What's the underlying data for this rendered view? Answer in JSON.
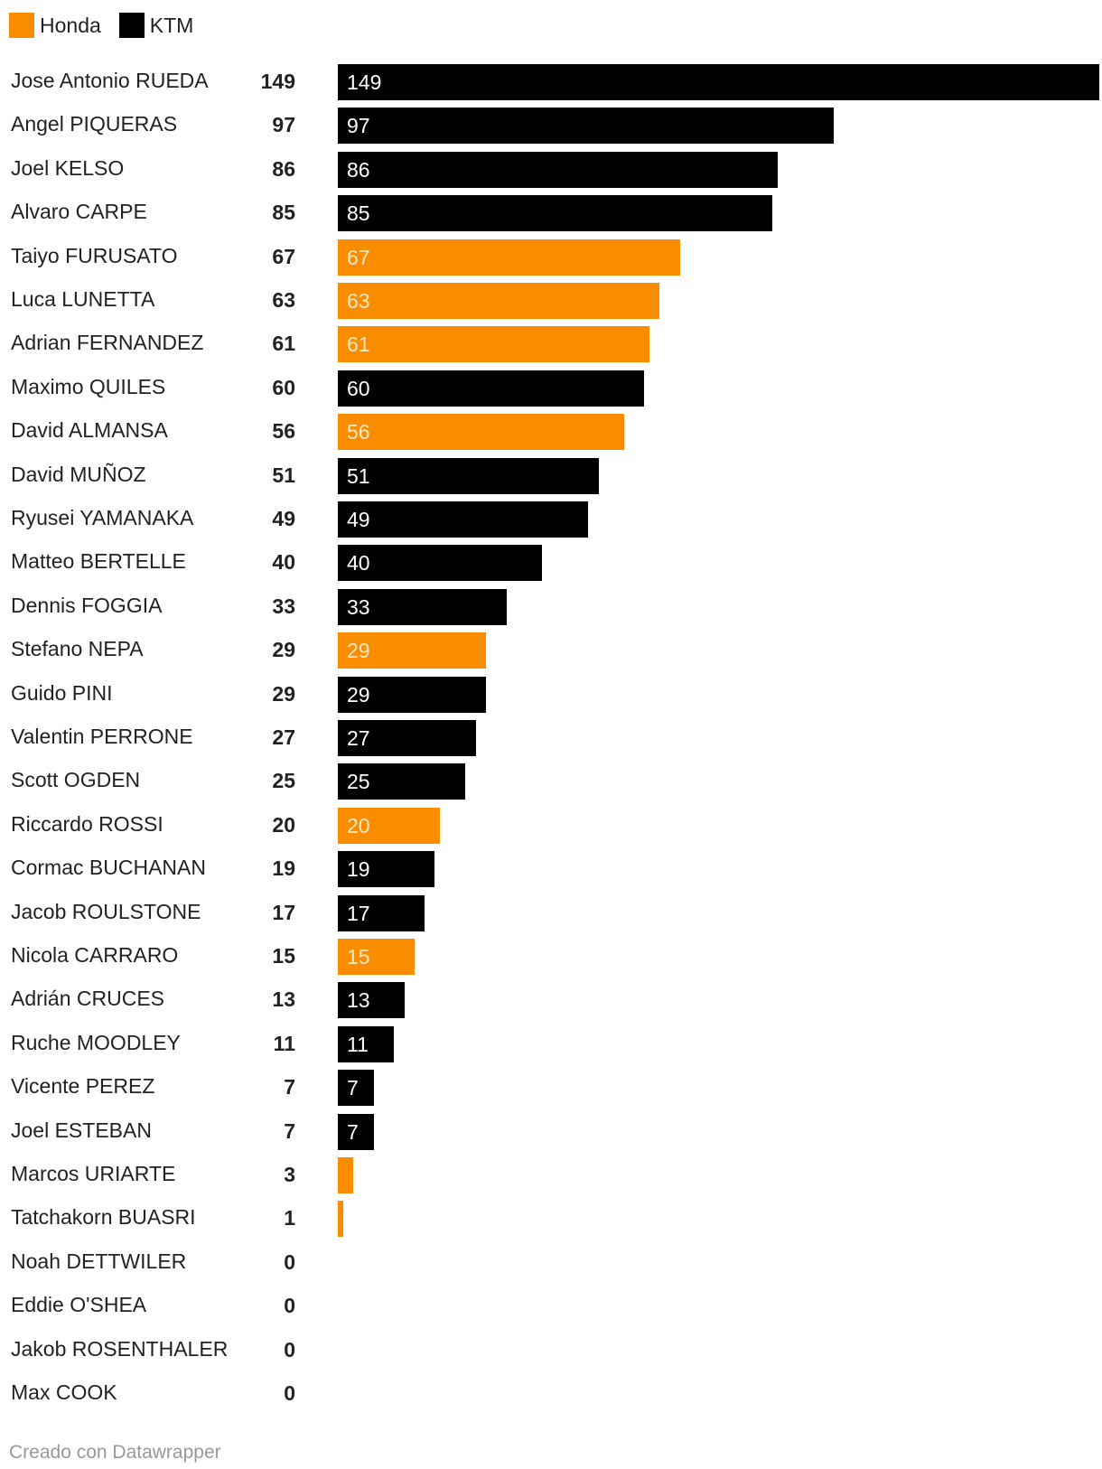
{
  "legend": [
    {
      "name": "Honda",
      "color": "#fa8c00"
    },
    {
      "name": "KTM",
      "color": "#000000"
    }
  ],
  "footer": "Creado con Datawrapper",
  "chart_data": {
    "type": "bar",
    "orientation": "horizontal",
    "max_value": 149,
    "series_colors": {
      "Honda": "#fa8c00",
      "KTM": "#000000"
    },
    "rows": [
      {
        "name": "Jose Antonio RUEDA",
        "value": 149,
        "team": "KTM",
        "show_label": true
      },
      {
        "name": "Angel PIQUERAS",
        "value": 97,
        "team": "KTM",
        "show_label": true
      },
      {
        "name": "Joel KELSO",
        "value": 86,
        "team": "KTM",
        "show_label": true
      },
      {
        "name": "Alvaro CARPE",
        "value": 85,
        "team": "KTM",
        "show_label": true
      },
      {
        "name": "Taiyo FURUSATO",
        "value": 67,
        "team": "Honda",
        "show_label": true
      },
      {
        "name": "Luca LUNETTA",
        "value": 63,
        "team": "Honda",
        "show_label": true
      },
      {
        "name": "Adrian FERNANDEZ",
        "value": 61,
        "team": "Honda",
        "show_label": true
      },
      {
        "name": "Maximo QUILES",
        "value": 60,
        "team": "KTM",
        "show_label": true
      },
      {
        "name": "David ALMANSA",
        "value": 56,
        "team": "Honda",
        "show_label": true
      },
      {
        "name": "David MUÑOZ",
        "value": 51,
        "team": "KTM",
        "show_label": true
      },
      {
        "name": "Ryusei YAMANAKA",
        "value": 49,
        "team": "KTM",
        "show_label": true
      },
      {
        "name": "Matteo BERTELLE",
        "value": 40,
        "team": "KTM",
        "show_label": true
      },
      {
        "name": "Dennis FOGGIA",
        "value": 33,
        "team": "KTM",
        "show_label": true
      },
      {
        "name": "Stefano NEPA",
        "value": 29,
        "team": "Honda",
        "show_label": true
      },
      {
        "name": "Guido PINI",
        "value": 29,
        "team": "KTM",
        "show_label": true
      },
      {
        "name": "Valentin PERRONE",
        "value": 27,
        "team": "KTM",
        "show_label": true
      },
      {
        "name": "Scott OGDEN",
        "value": 25,
        "team": "KTM",
        "show_label": true
      },
      {
        "name": "Riccardo ROSSI",
        "value": 20,
        "team": "Honda",
        "show_label": true
      },
      {
        "name": "Cormac BUCHANAN",
        "value": 19,
        "team": "KTM",
        "show_label": true
      },
      {
        "name": "Jacob ROULSTONE",
        "value": 17,
        "team": "KTM",
        "show_label": true
      },
      {
        "name": "Nicola CARRARO",
        "value": 15,
        "team": "Honda",
        "show_label": true
      },
      {
        "name": "Adrián CRUCES",
        "value": 13,
        "team": "KTM",
        "show_label": true
      },
      {
        "name": "Ruche MOODLEY",
        "value": 11,
        "team": "KTM",
        "show_label": true
      },
      {
        "name": "Vicente PEREZ",
        "value": 7,
        "team": "KTM",
        "show_label": true
      },
      {
        "name": "Joel ESTEBAN",
        "value": 7,
        "team": "KTM",
        "show_label": true
      },
      {
        "name": "Marcos URIARTE",
        "value": 3,
        "team": "Honda",
        "show_label": false
      },
      {
        "name": "Tatchakorn BUASRI",
        "value": 1,
        "team": "Honda",
        "show_label": false
      },
      {
        "name": "Noah DETTWILER",
        "value": 0,
        "team": "",
        "show_label": false
      },
      {
        "name": "Eddie O'SHEA",
        "value": 0,
        "team": "",
        "show_label": false
      },
      {
        "name": "Jakob ROSENTHALER",
        "value": 0,
        "team": "",
        "show_label": false
      },
      {
        "name": "Max COOK",
        "value": 0,
        "team": "",
        "show_label": false
      }
    ]
  }
}
